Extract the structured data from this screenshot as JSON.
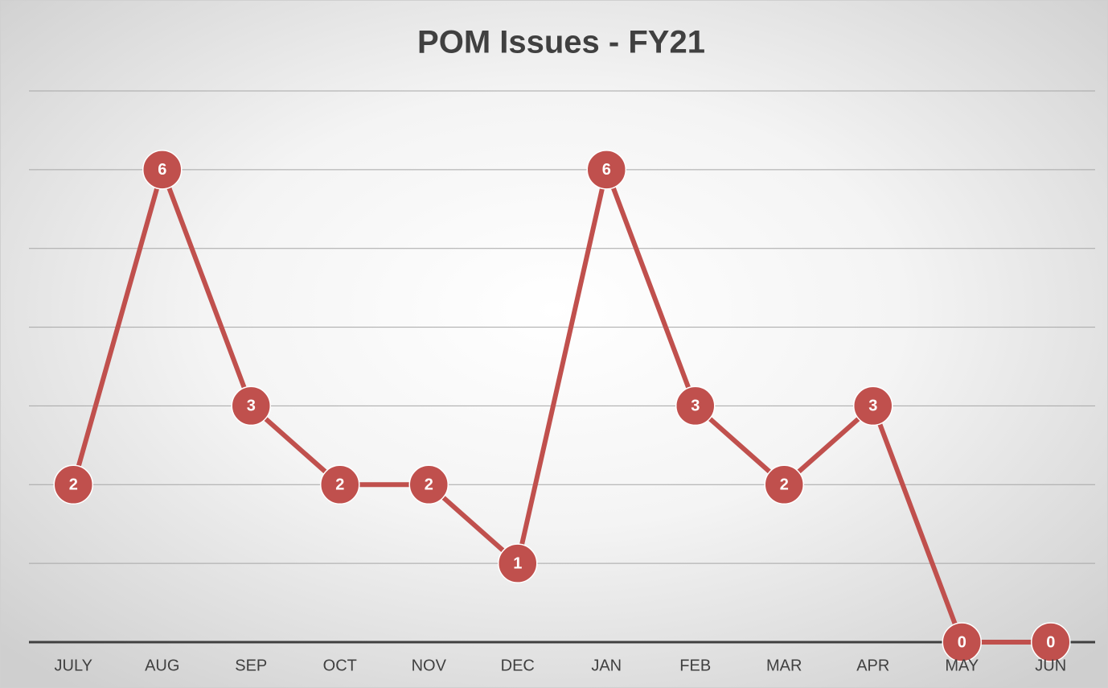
{
  "chart_data": {
    "type": "line",
    "title": "POM Issues - FY21",
    "categories": [
      "JULY",
      "AUG",
      "SEP",
      "OCT",
      "NOV",
      "DEC",
      "JAN",
      "FEB",
      "MAR",
      "APR",
      "MAY",
      "JUN"
    ],
    "values": [
      2,
      6,
      3,
      2,
      2,
      1,
      6,
      3,
      2,
      3,
      0,
      0
    ],
    "color": "#c0504d",
    "ylim": [
      0,
      7
    ],
    "yticks": [
      0,
      1,
      2,
      3,
      4,
      5,
      6,
      7
    ],
    "grid": true
  }
}
